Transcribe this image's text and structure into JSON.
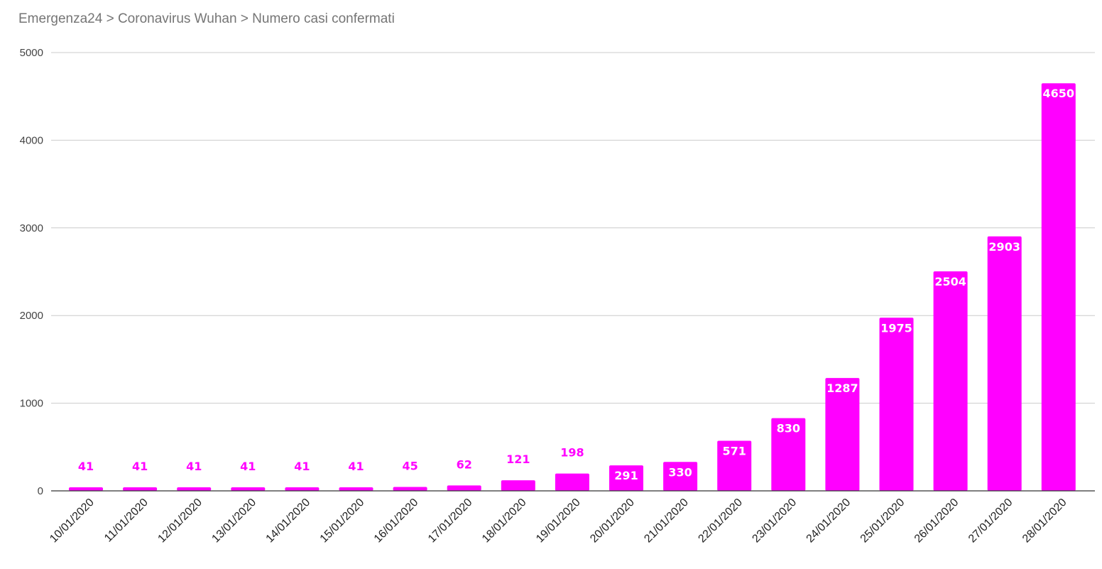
{
  "chart_data": {
    "type": "bar",
    "title": "Emergenza24 > Coronavirus Wuhan > Numero casi confermati",
    "xlabel": "",
    "ylabel": "",
    "ylim": [
      0,
      5000
    ],
    "yticks": [
      0,
      1000,
      2000,
      3000,
      4000,
      5000
    ],
    "grid": true,
    "legend": "none",
    "bar_color": "#ff00ff",
    "inside_label_color": "#ffffff",
    "categories": [
      "10/01/2020",
      "11/01/2020",
      "12/01/2020",
      "13/01/2020",
      "14/01/2020",
      "15/01/2020",
      "16/01/2020",
      "17/01/2020",
      "18/01/2020",
      "19/01/2020",
      "20/01/2020",
      "21/01/2020",
      "22/01/2020",
      "23/01/2020",
      "24/01/2020",
      "25/01/2020",
      "26/01/2020",
      "27/01/2020",
      "28/01/2020"
    ],
    "values": [
      41,
      41,
      41,
      41,
      41,
      41,
      45,
      62,
      121,
      198,
      291,
      330,
      571,
      830,
      1287,
      1975,
      2504,
      2903,
      4650
    ]
  }
}
